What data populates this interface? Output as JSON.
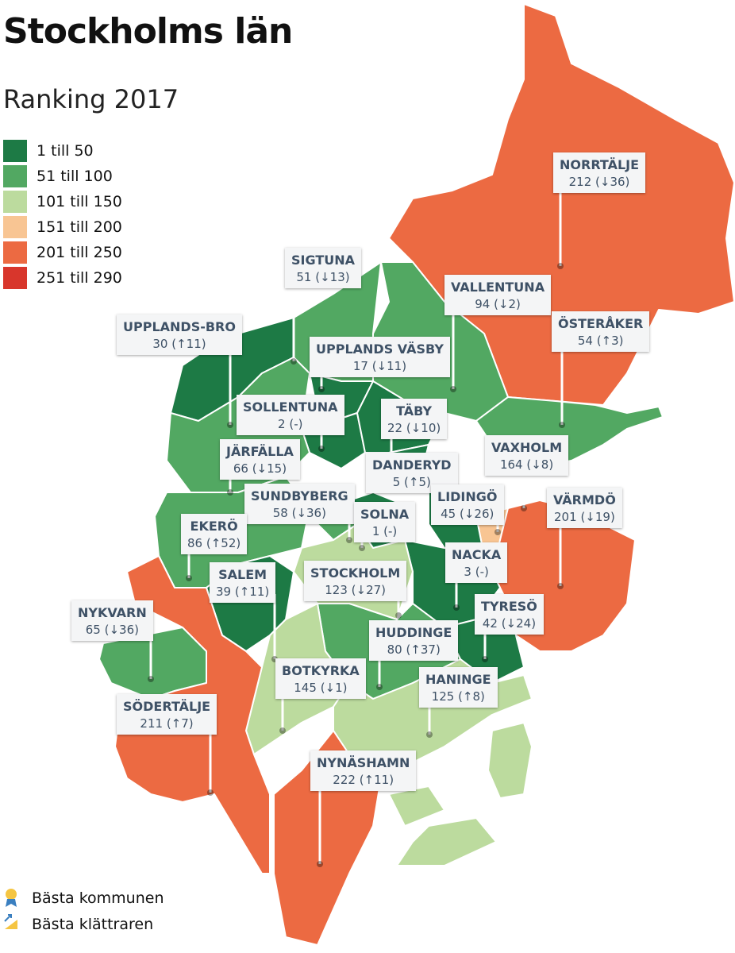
{
  "header": {
    "title": "Stockholms län",
    "subtitle": "Ranking 2017"
  },
  "legend": [
    {
      "label": "1 till 50",
      "color": "#1d7a45"
    },
    {
      "label": "51 till 100",
      "color": "#52a862"
    },
    {
      "label": "101 till 150",
      "color": "#bcdb9e"
    },
    {
      "label": "151 till 200",
      "color": "#f8c593"
    },
    {
      "label": "201 till 250",
      "color": "#ec6a42"
    },
    {
      "label": "251 till 290",
      "color": "#d8362c"
    }
  ],
  "municipalities": [
    {
      "name": "NORRTÄLJE",
      "rank": 212,
      "change": "(↓36)",
      "color": "#ec6a42"
    },
    {
      "name": "SIGTUNA",
      "rank": 51,
      "change": "(↓13)",
      "color": "#52a862"
    },
    {
      "name": "VALLENTUNA",
      "rank": 94,
      "change": "(↓2)",
      "color": "#52a862"
    },
    {
      "name": "UPPLANDS-BRO",
      "rank": 30,
      "change": "(↑11)",
      "color": "#1d7a45"
    },
    {
      "name": "ÖSTERÅKER",
      "rank": 54,
      "change": "(↑3)",
      "color": "#52a862"
    },
    {
      "name": "UPPLANDS VÄSBY",
      "rank": 17,
      "change": "(↓11)",
      "color": "#1d7a45"
    },
    {
      "name": "SOLLENTUNA",
      "rank": 2,
      "change": "(-)",
      "color": "#1d7a45"
    },
    {
      "name": "TÄBY",
      "rank": 22,
      "change": "(↓10)",
      "color": "#1d7a45"
    },
    {
      "name": "JÄRFÄLLA",
      "rank": 66,
      "change": "(↓15)",
      "color": "#52a862"
    },
    {
      "name": "VAXHOLM",
      "rank": 164,
      "change": "(↓8)",
      "color": "#f8c593"
    },
    {
      "name": "DANDERYD",
      "rank": 5,
      "change": "(↑5)",
      "color": "#1d7a45"
    },
    {
      "name": "LIDINGÖ",
      "rank": 45,
      "change": "(↓26)",
      "color": "#1d7a45"
    },
    {
      "name": "SUNDBYBERG",
      "rank": 58,
      "change": "(↓36)",
      "color": "#52a862"
    },
    {
      "name": "VÄRMDÖ",
      "rank": 201,
      "change": "(↓19)",
      "color": "#ec6a42"
    },
    {
      "name": "SOLNA",
      "rank": 1,
      "change": "(-)",
      "color": "#1d7a45"
    },
    {
      "name": "EKERÖ",
      "rank": 86,
      "change": "(↑52)",
      "color": "#52a862"
    },
    {
      "name": "NACKA",
      "rank": 3,
      "change": "(-)",
      "color": "#1d7a45"
    },
    {
      "name": "SALEM",
      "rank": 39,
      "change": "(↑11)",
      "color": "#1d7a45"
    },
    {
      "name": "STOCKHOLM",
      "rank": 123,
      "change": "(↓27)",
      "color": "#bcdb9e"
    },
    {
      "name": "NYKVARN",
      "rank": 65,
      "change": "(↓36)",
      "color": "#52a862"
    },
    {
      "name": "TYRESÖ",
      "rank": 42,
      "change": "(↓24)",
      "color": "#1d7a45"
    },
    {
      "name": "HUDDINGE",
      "rank": 80,
      "change": "(↑37)",
      "color": "#52a862"
    },
    {
      "name": "BOTKYRKA",
      "rank": 145,
      "change": "(↓1)",
      "color": "#bcdb9e"
    },
    {
      "name": "HANINGE",
      "rank": 125,
      "change": "(↑8)",
      "color": "#bcdb9e"
    },
    {
      "name": "SÖDERTÄLJE",
      "rank": 211,
      "change": "(↑7)",
      "color": "#ec6a42"
    },
    {
      "name": "NYNÄSHAMN",
      "rank": 222,
      "change": "(↑11)",
      "color": "#ec6a42"
    }
  ],
  "footnotes": [
    "Bästa kommunen",
    "Bästa klättraren"
  ]
}
